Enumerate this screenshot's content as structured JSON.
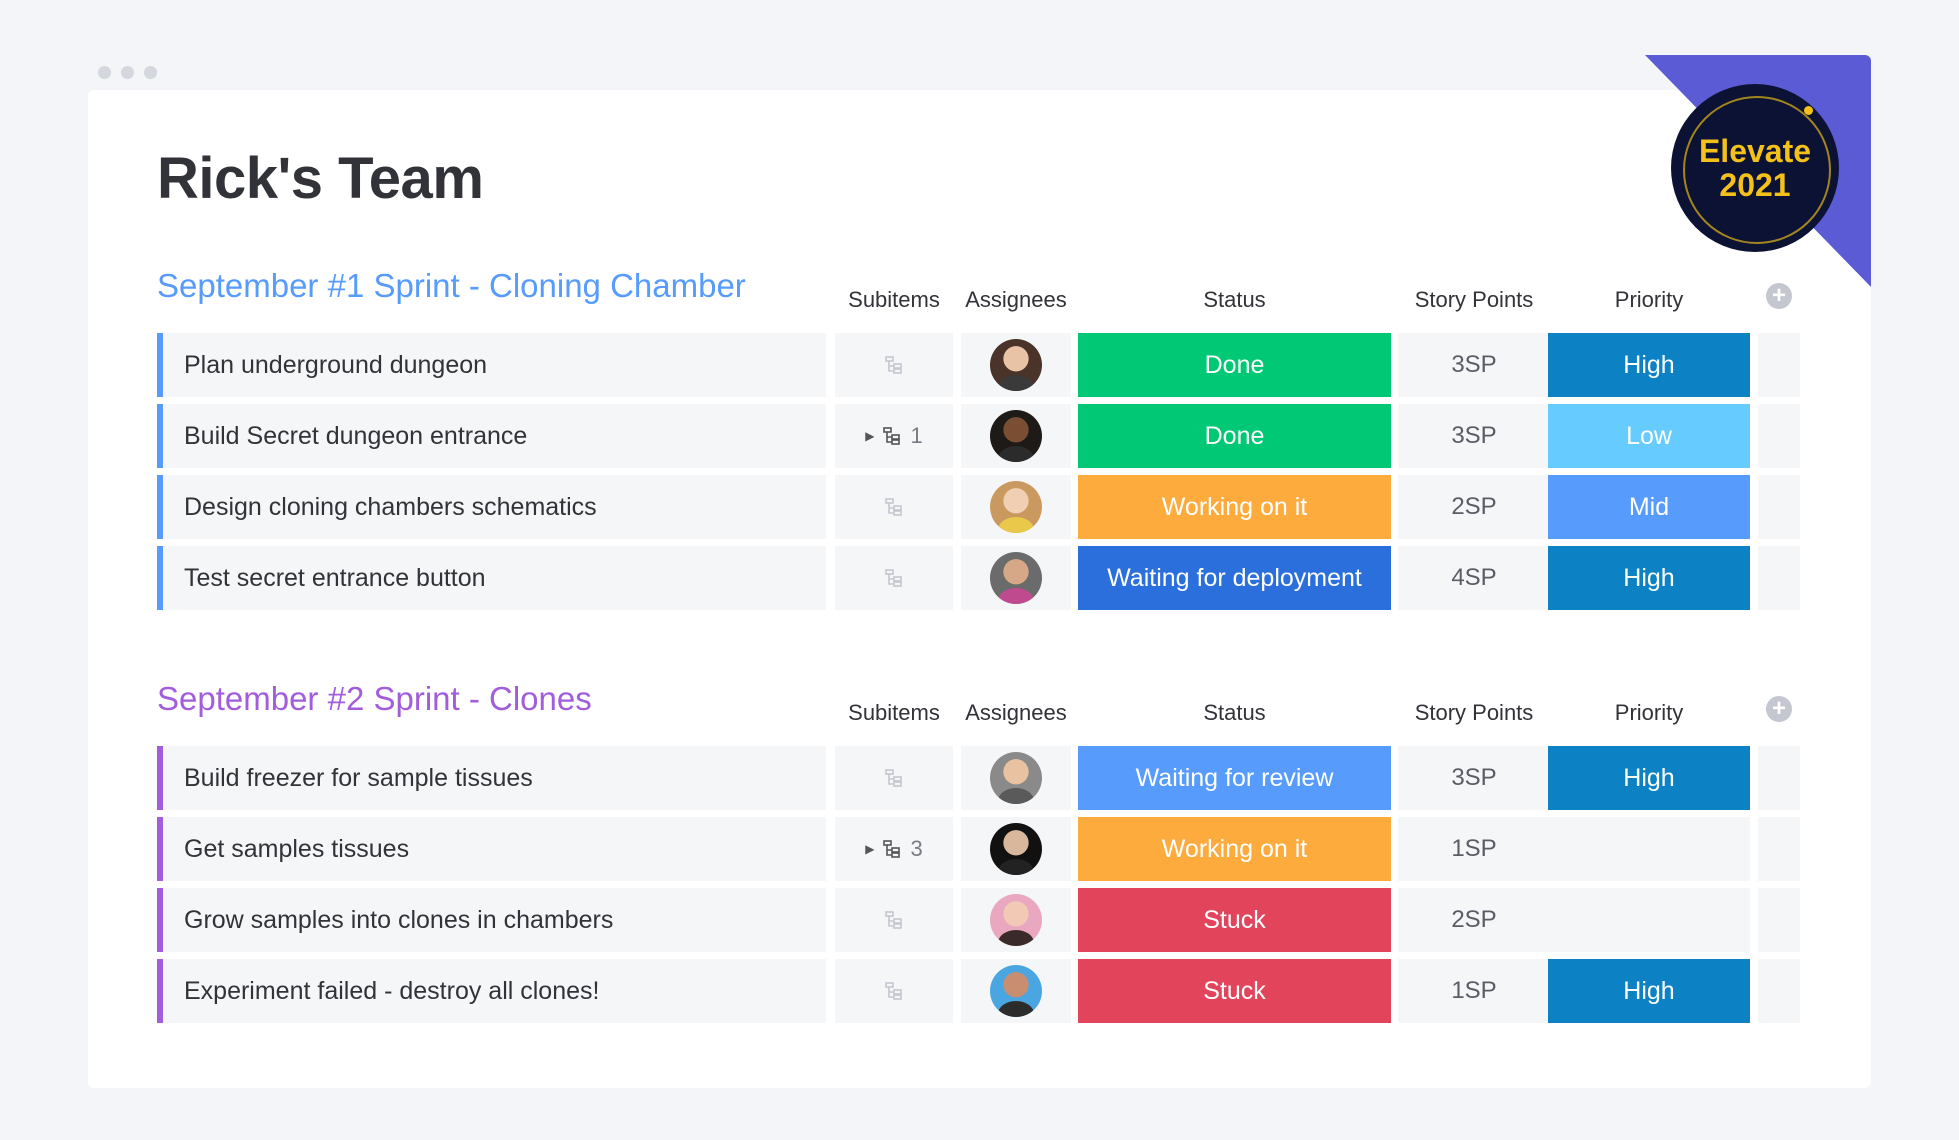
{
  "page_title": "Rick's Team",
  "badge": {
    "line1": "Elevate",
    "line2": "2021"
  },
  "columns": {
    "subitems": "Subitems",
    "assignees": "Assignees",
    "status": "Status",
    "story_points": "Story Points",
    "priority": "Priority"
  },
  "colors": {
    "done": "#00c875",
    "working": "#fdab3d",
    "deployment": "#2a6fdb",
    "review": "#579bfc",
    "stuck": "#e2445c",
    "high": "#0c82c4",
    "low": "#66ccff",
    "mid": "#579bfc"
  },
  "groups": [
    {
      "title": "September #1 Sprint - Cloning Chamber",
      "color": "#579bfc",
      "rows": [
        {
          "name": "Plan underground dungeon",
          "subitems": "",
          "status": "Done",
          "status_color": "#00c875",
          "sp": "3SP",
          "priority": "High",
          "priority_color": "#0c82c4",
          "avatar": {
            "skin": "#e8c3a6",
            "hair": "#4a3328",
            "shirt": "#3a3a3a"
          }
        },
        {
          "name": "Build Secret dungeon entrance",
          "subitems": "1",
          "status": "Done",
          "status_color": "#00c875",
          "sp": "3SP",
          "priority": "Low",
          "priority_color": "#66ccff",
          "avatar": {
            "skin": "#7a4e33",
            "hair": "#1e1a18",
            "shirt": "#2b2b2b"
          }
        },
        {
          "name": "Design cloning chambers schematics",
          "subitems": "",
          "status": "Working on it",
          "status_color": "#fdab3d",
          "sp": "2SP",
          "priority": "Mid",
          "priority_color": "#579bfc",
          "avatar": {
            "skin": "#f0cfb2",
            "hair": "#c9995f",
            "shirt": "#e9c84a"
          }
        },
        {
          "name": "Test secret entrance button",
          "subitems": "",
          "status": "Waiting for deployment",
          "status_color": "#2a6fdb",
          "sp": "4SP",
          "priority": "High",
          "priority_color": "#0c82c4",
          "avatar": {
            "skin": "#d6a888",
            "hair": "#6b6b6b",
            "shirt": "#c04a8e"
          }
        }
      ]
    },
    {
      "title": "September #2 Sprint - Clones",
      "color": "#a25ddc",
      "rows": [
        {
          "name": "Build freezer for sample tissues",
          "subitems": "",
          "status": "Waiting for review",
          "status_color": "#579bfc",
          "sp": "3SP",
          "priority": "High",
          "priority_color": "#0c82c4",
          "avatar": {
            "skin": "#e9c2a2",
            "hair": "#8a8a8a",
            "shirt": "#5a5a5a"
          }
        },
        {
          "name": "Get samples tissues",
          "subitems": "3",
          "status": "Working on it",
          "status_color": "#fdab3d",
          "sp": "1SP",
          "priority": "",
          "priority_color": "#f5f6f8",
          "avatar": {
            "skin": "#d9b79c",
            "hair": "#111111",
            "shirt": "#222222"
          }
        },
        {
          "name": "Grow samples into clones in chambers",
          "subitems": "",
          "status": "Stuck",
          "status_color": "#e2445c",
          "sp": "2SP",
          "priority": "",
          "priority_color": "#f5f6f8",
          "avatar": {
            "skin": "#f1c9b4",
            "hair": "#e9a7c0",
            "shirt": "#3b2a2a"
          }
        },
        {
          "name": "Experiment failed - destroy all clones!",
          "subitems": "",
          "status": "Stuck",
          "status_color": "#e2445c",
          "sp": "1SP",
          "priority": "High",
          "priority_color": "#0c82c4",
          "avatar": {
            "skin": "#c88e6f",
            "hair": "#4aa6e0",
            "shirt": "#2c2c2c"
          }
        }
      ]
    }
  ]
}
